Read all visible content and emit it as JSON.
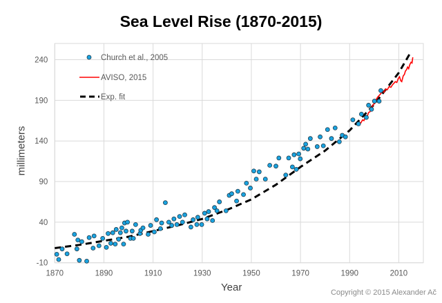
{
  "chart_data": {
    "type": "scatter",
    "title": "Sea Level Rise (1870-2015)",
    "xlabel": "Year",
    "ylabel": "millimeters",
    "xlim": [
      1870,
      2020
    ],
    "ylim": [
      -10,
      260
    ],
    "x_ticks": [
      1870,
      1890,
      1910,
      1930,
      1950,
      1970,
      1990,
      2010
    ],
    "y_ticks": [
      -10,
      40,
      90,
      140,
      190,
      240
    ],
    "grid": true,
    "legend_position": "top-left",
    "series": [
      {
        "name": "Church et al., 2005",
        "kind": "scatter",
        "color": "#1aa3e0",
        "points": [
          [
            1870.8,
            0.5
          ],
          [
            1871.6,
            -6
          ],
          [
            1873,
            7
          ],
          [
            1875,
            1
          ],
          [
            1878,
            25
          ],
          [
            1879,
            7
          ],
          [
            1879.4,
            18
          ],
          [
            1880,
            -7
          ],
          [
            1881,
            16
          ],
          [
            1883,
            -8
          ],
          [
            1884,
            21
          ],
          [
            1885.6,
            8
          ],
          [
            1886,
            23
          ],
          [
            1888,
            11
          ],
          [
            1889.5,
            20
          ],
          [
            1891,
            9
          ],
          [
            1891.7,
            26
          ],
          [
            1892.8,
            14
          ],
          [
            1893.6,
            27
          ],
          [
            1894.6,
            13
          ],
          [
            1895,
            31
          ],
          [
            1896,
            19
          ],
          [
            1896.7,
            27
          ],
          [
            1897.3,
            33
          ],
          [
            1898,
            13
          ],
          [
            1898.4,
            39
          ],
          [
            1899,
            29
          ],
          [
            1899.6,
            40
          ],
          [
            1900.8,
            20
          ],
          [
            1901.5,
            29
          ],
          [
            1902,
            20
          ],
          [
            1902.9,
            37
          ],
          [
            1904.7,
            26
          ],
          [
            1905,
            30
          ],
          [
            1905.9,
            33
          ],
          [
            1908,
            25
          ],
          [
            1909,
            36
          ],
          [
            1910.5,
            28
          ],
          [
            1911.4,
            43
          ],
          [
            1913,
            32
          ],
          [
            1913.5,
            39
          ],
          [
            1915,
            64
          ],
          [
            1916.4,
            40
          ],
          [
            1917.6,
            36
          ],
          [
            1918.5,
            44
          ],
          [
            1919.7,
            37
          ],
          [
            1920.8,
            47
          ],
          [
            1922,
            40
          ],
          [
            1922.9,
            49
          ],
          [
            1925.4,
            34
          ],
          [
            1926.3,
            43
          ],
          [
            1927.8,
            37
          ],
          [
            1928.2,
            46
          ],
          [
            1929.8,
            37
          ],
          [
            1931,
            51
          ],
          [
            1932,
            44
          ],
          [
            1932.6,
            53
          ],
          [
            1934.2,
            42
          ],
          [
            1935,
            58
          ],
          [
            1936,
            54
          ],
          [
            1937,
            65
          ],
          [
            1939.7,
            54
          ],
          [
            1941,
            73
          ],
          [
            1942,
            75
          ],
          [
            1944,
            66
          ],
          [
            1944.5,
            78
          ],
          [
            1946.8,
            74
          ],
          [
            1948,
            88
          ],
          [
            1949.6,
            82
          ],
          [
            1951,
            103
          ],
          [
            1952,
            93
          ],
          [
            1953.2,
            102
          ],
          [
            1955.7,
            93
          ],
          [
            1957.5,
            110
          ],
          [
            1960,
            109
          ],
          [
            1961.2,
            119
          ],
          [
            1964,
            98
          ],
          [
            1965.2,
            119
          ],
          [
            1966.7,
            108
          ],
          [
            1967.4,
            123
          ],
          [
            1968.3,
            105
          ],
          [
            1969.3,
            124
          ],
          [
            1969.9,
            118
          ],
          [
            1971.3,
            131
          ],
          [
            1972.1,
            136
          ],
          [
            1973,
            130
          ],
          [
            1974,
            143
          ],
          [
            1976.8,
            133
          ],
          [
            1978,
            145
          ],
          [
            1979.3,
            134
          ],
          [
            1981,
            154
          ],
          [
            1982.6,
            143
          ],
          [
            1984.1,
            156
          ],
          [
            1985.8,
            139
          ],
          [
            1987,
            147
          ],
          [
            1988.3,
            145
          ],
          [
            1991.3,
            166
          ],
          [
            1993.6,
            161
          ],
          [
            1994.8,
            173
          ],
          [
            1996.8,
            169
          ],
          [
            1997.7,
            184
          ],
          [
            1998.9,
            179
          ],
          [
            2000.1,
            189
          ],
          [
            2002,
            189
          ],
          [
            2002.7,
            202
          ]
        ]
      },
      {
        "name": "AVISO, 2015",
        "kind": "line",
        "color": "#ff0000",
        "points": [
          [
            1993,
            159
          ],
          [
            1993.8,
            163
          ],
          [
            1994.5,
            162
          ],
          [
            1995.3,
            166
          ],
          [
            1995.8,
            165
          ],
          [
            1996.5,
            170
          ],
          [
            1997,
            169
          ],
          [
            1997.7,
            175
          ],
          [
            1998.3,
            176
          ],
          [
            1998.8,
            180
          ],
          [
            1999.6,
            185
          ],
          [
            2000.2,
            186
          ],
          [
            2000.8,
            191
          ],
          [
            2001.4,
            194
          ],
          [
            2002,
            196
          ],
          [
            2002.6,
            198
          ],
          [
            2003.3,
            201
          ],
          [
            2004,
            200
          ],
          [
            2004.7,
            204
          ],
          [
            2005.3,
            203
          ],
          [
            2006.1,
            207
          ],
          [
            2006.8,
            206
          ],
          [
            2007.4,
            209
          ],
          [
            2008,
            211
          ],
          [
            2008.6,
            213
          ],
          [
            2009.2,
            212
          ],
          [
            2009.8,
            217
          ],
          [
            2010.3,
            219
          ],
          [
            2010.8,
            214
          ],
          [
            2011.2,
            213
          ],
          [
            2011.8,
            220
          ],
          [
            2012.3,
            222
          ],
          [
            2012.7,
            226
          ],
          [
            2013.2,
            228
          ],
          [
            2013.6,
            231
          ],
          [
            2014,
            229
          ],
          [
            2014.5,
            234
          ],
          [
            2015,
            237
          ],
          [
            2015.4,
            236
          ],
          [
            2015.7,
            243
          ]
        ]
      },
      {
        "name": "Exp. fit",
        "kind": "dashed-line",
        "color": "#000000",
        "points": [
          [
            1870,
            8
          ],
          [
            1880,
            12
          ],
          [
            1890,
            17
          ],
          [
            1900,
            22
          ],
          [
            1910,
            29
          ],
          [
            1920,
            36
          ],
          [
            1930,
            44
          ],
          [
            1940,
            55
          ],
          [
            1950,
            68
          ],
          [
            1960,
            86
          ],
          [
            1970,
            108
          ],
          [
            1980,
            128
          ],
          [
            1990,
            153
          ],
          [
            2000,
            185
          ],
          [
            2010,
            224
          ],
          [
            2015,
            250
          ]
        ]
      }
    ]
  },
  "copyright": "Copyright © 2015 Alexander Ač"
}
